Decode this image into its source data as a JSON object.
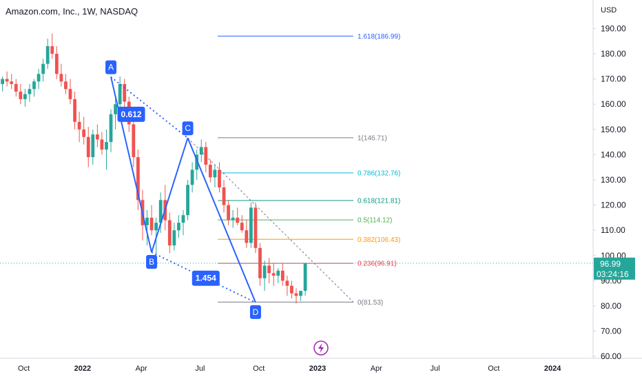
{
  "header": {
    "title": "Amazon.com, Inc., 1W, NASDAQ",
    "currency": "USD"
  },
  "chart_data": {
    "type": "candlestick",
    "ylim": [
      60,
      195
    ],
    "yticks": [
      60,
      70,
      80,
      90,
      100,
      110,
      120,
      130,
      140,
      150,
      160,
      170,
      180,
      190
    ],
    "ytick_labels": [
      "60.00",
      "70.00",
      "80.00",
      "90.00",
      "100.00",
      "110.00",
      "120.00",
      "130.00",
      "140.00",
      "150.00",
      "160.00",
      "170.00",
      "180.00",
      "190.00"
    ],
    "xticks": [
      {
        "label": "Oct",
        "week": 0,
        "bold": false
      },
      {
        "label": "2022",
        "week": 13,
        "bold": true
      },
      {
        "label": "Apr",
        "week": 26,
        "bold": false
      },
      {
        "label": "Jul",
        "week": 39,
        "bold": false
      },
      {
        "label": "Oct",
        "week": 52,
        "bold": false
      },
      {
        "label": "2023",
        "week": 65,
        "bold": true
      },
      {
        "label": "Apr",
        "week": 78,
        "bold": false
      },
      {
        "label": "Jul",
        "week": 91,
        "bold": false
      },
      {
        "label": "Oct",
        "week": 104,
        "bold": false
      },
      {
        "label": "2024",
        "week": 117,
        "bold": true
      }
    ],
    "candles": [
      [
        168,
        171,
        165,
        170
      ],
      [
        170,
        173,
        167,
        169
      ],
      [
        169,
        172,
        166,
        168
      ],
      [
        168,
        170,
        163,
        165
      ],
      [
        165,
        168,
        160,
        162
      ],
      [
        162,
        166,
        159,
        164
      ],
      [
        164,
        168,
        161,
        166
      ],
      [
        166,
        170,
        163,
        169
      ],
      [
        169,
        174,
        166,
        172
      ],
      [
        172,
        178,
        169,
        176
      ],
      [
        176,
        186,
        174,
        183
      ],
      [
        183,
        188,
        178,
        180
      ],
      [
        180,
        183,
        170,
        172
      ],
      [
        172,
        176,
        167,
        169
      ],
      [
        169,
        172,
        164,
        166
      ],
      [
        166,
        170,
        160,
        162
      ],
      [
        162,
        165,
        150,
        153
      ],
      [
        153,
        157,
        145,
        150
      ],
      [
        150,
        155,
        144,
        147
      ],
      [
        147,
        151,
        135,
        139
      ],
      [
        139,
        150,
        136,
        148
      ],
      [
        148,
        152,
        143,
        146
      ],
      [
        146,
        149,
        140,
        142
      ],
      [
        142,
        150,
        134,
        145
      ],
      [
        145,
        158,
        141,
        156
      ],
      [
        156,
        163,
        150,
        160
      ],
      [
        160,
        171,
        157,
        168
      ],
      [
        168,
        170,
        158,
        161
      ],
      [
        161,
        163,
        149,
        152
      ],
      [
        152,
        155,
        135,
        139
      ],
      [
        139,
        142,
        118,
        122
      ],
      [
        122,
        126,
        106,
        112
      ],
      [
        112,
        118,
        104,
        115
      ],
      [
        115,
        120,
        108,
        110
      ],
      [
        110,
        115,
        100,
        113
      ],
      [
        113,
        125,
        109,
        122
      ],
      [
        122,
        128,
        110,
        114
      ],
      [
        114,
        117,
        101,
        104
      ],
      [
        104,
        113,
        102,
        110
      ],
      [
        110,
        116,
        107,
        113
      ],
      [
        113,
        118,
        108,
        116
      ],
      [
        116,
        130,
        114,
        128
      ],
      [
        128,
        137,
        125,
        134
      ],
      [
        134,
        142,
        130,
        140
      ],
      [
        140,
        146,
        137,
        143
      ],
      [
        143,
        145,
        133,
        136
      ],
      [
        136,
        138,
        129,
        131
      ],
      [
        131,
        136,
        127,
        134
      ],
      [
        134,
        137,
        125,
        127
      ],
      [
        127,
        130,
        117,
        120
      ],
      [
        120,
        122,
        112,
        114
      ],
      [
        114,
        118,
        111,
        115
      ],
      [
        115,
        119,
        112,
        113
      ],
      [
        113,
        116,
        109,
        110
      ],
      [
        110,
        114,
        103,
        105
      ],
      [
        105,
        121,
        103,
        119
      ],
      [
        119,
        121,
        101,
        103
      ],
      [
        103,
        105,
        88,
        91
      ],
      [
        91,
        98,
        86,
        96
      ],
      [
        96,
        99,
        89,
        93
      ],
      [
        93,
        97,
        88,
        92
      ],
      [
        92,
        95,
        89,
        94
      ],
      [
        94,
        97,
        88,
        90
      ],
      [
        90,
        92,
        84,
        88
      ],
      [
        88,
        90,
        83,
        85
      ],
      [
        85,
        87,
        81,
        84
      ],
      [
        84,
        86,
        82,
        86
      ],
      [
        86,
        97,
        84,
        96.99
      ]
    ],
    "harmonic_pattern": {
      "points": [
        {
          "label": "A",
          "week": 24,
          "price": 170.8
        },
        {
          "label": "B",
          "week": 33,
          "price": 101.3
        },
        {
          "label": "C",
          "week": 41,
          "price": 146.6
        },
        {
          "label": "D",
          "week": 56,
          "price": 81.4
        }
      ],
      "ratios": [
        {
          "label": "0.612",
          "week": 28.5,
          "price": 156
        },
        {
          "label": "1.454",
          "week": 45,
          "price": 91
        }
      ]
    },
    "fib_levels": [
      {
        "ratio": "1.618",
        "price": 186.99,
        "color": "#2962ff"
      },
      {
        "ratio": "1",
        "price": 146.71,
        "color": "#787b86"
      },
      {
        "ratio": "0.786",
        "price": 132.76,
        "color": "#00bcd4"
      },
      {
        "ratio": "0.618",
        "price": 121.81,
        "color": "#089981"
      },
      {
        "ratio": "0.5",
        "price": 114.12,
        "color": "#4caf50"
      },
      {
        "ratio": "0.382",
        "price": 106.43,
        "color": "#ff9800"
      },
      {
        "ratio": "0.236",
        "price": 96.91,
        "color": "#f23645"
      },
      {
        "ratio": "0",
        "price": 81.53,
        "color": "#787b86"
      }
    ],
    "last_price": "96.99",
    "countdown": "03:24:16",
    "colors": {
      "up": "#26a69a",
      "down": "#ef5350",
      "pattern": "#2962ff",
      "last_price_bg": "#26a69a",
      "events_icon": "#9c27b0"
    }
  },
  "events_icon": "lightning-icon"
}
